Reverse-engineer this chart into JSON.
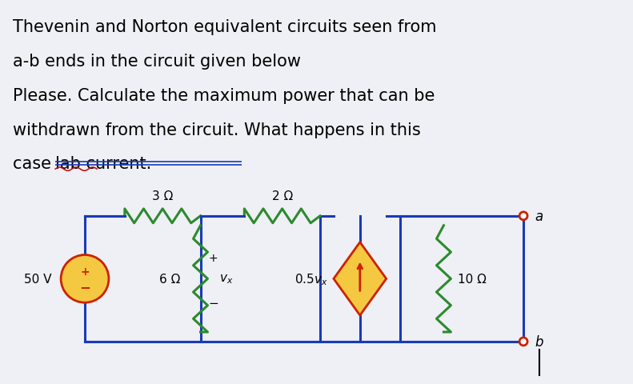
{
  "bg_color": "#eef0f5",
  "text_color": "#000000",
  "blue_wire": "#1a3ab5",
  "green_resistor": "#2d8a2d",
  "red_element": "#cc2200",
  "orange_source_face": "#f5c842",
  "orange_source_edge": "#cc2200",
  "title_lines": [
    "Thevenin and Norton equivalent circuits seen from",
    "a-b ends in the circuit given below",
    "Please. Calculate the maximum power that can be",
    "withdrawn from the circuit. What happens in this",
    "case lab current."
  ],
  "font_size_title": 15.0,
  "vs_label": "50 V",
  "r1_label": "3 Ω",
  "r6_label": "6 Ω",
  "r2_label": "2 Ω",
  "vx_label": "v_x",
  "cs_label": "0.5v_x",
  "r4_label": "10 Ω",
  "node_a": "a",
  "node_b": "b",
  "squiggle_color": "#cc0000",
  "underline_color": "#1a3ab5",
  "cursor_color": "#000000"
}
